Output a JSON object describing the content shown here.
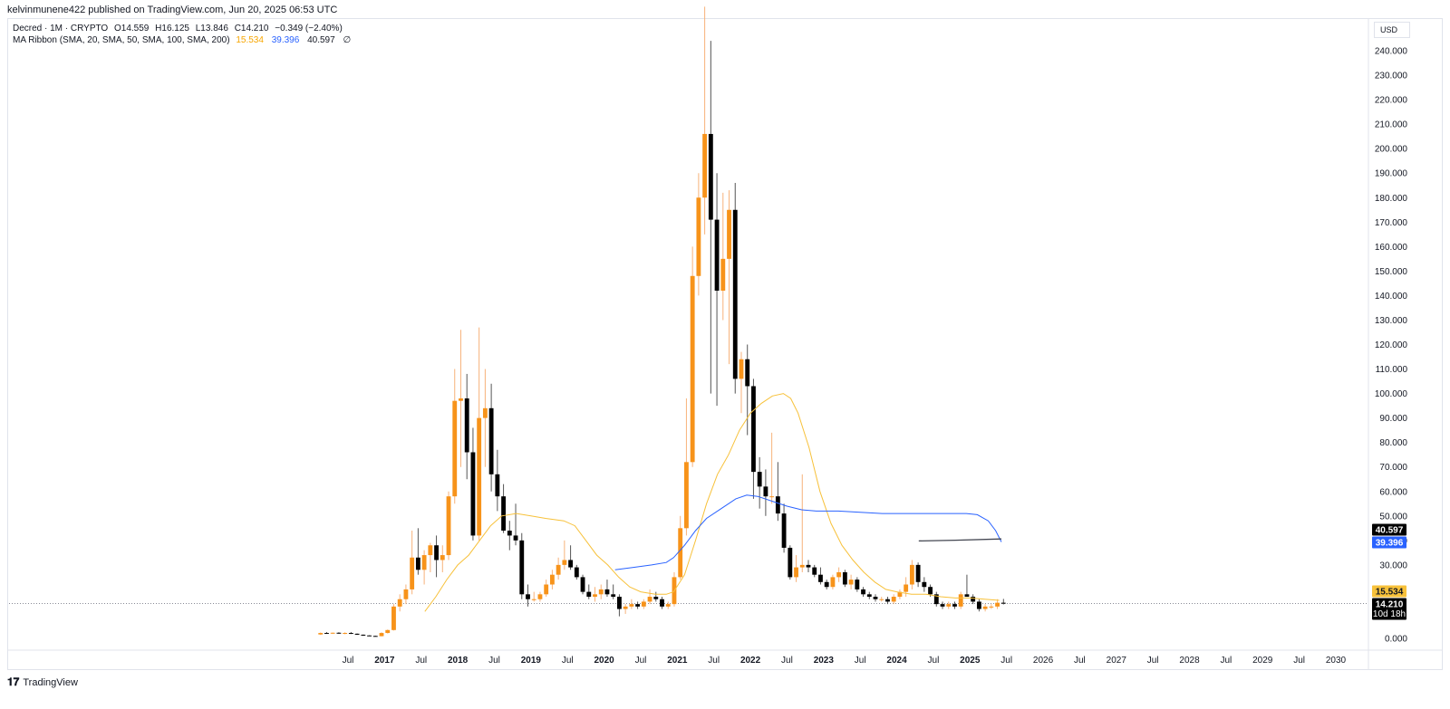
{
  "header": {
    "published": "kelvinmunene422 published on TradingView.com, Jun 20, 2025 06:53 UTC"
  },
  "legend": {
    "symbol": "Decred · 1M · CRYPTO",
    "open": "O14.559",
    "high": "H16.125",
    "low": "L13.846",
    "close": "C14.210",
    "change": "−0.349 (−2.40%)",
    "indicator": "MA Ribbon (SMA, 20, SMA, 50, SMA, 100, SMA, 200)",
    "ma1": "15.534",
    "ma2": "39.396",
    "ma3": "40.597",
    "ma4": "∅"
  },
  "currency": "USD",
  "footer": {
    "logo_mark": "𝟏𝟕",
    "logo_text": "TradingView"
  },
  "colors": {
    "up": "#f7931a",
    "down": "#000000",
    "ma20": "#f7c13a",
    "ma50": "#2962ff",
    "ma100": "#434651",
    "grid": "#e0e3eb"
  },
  "chart_data": {
    "type": "candlestick",
    "y_axis": {
      "ticks": [
        0,
        30,
        40,
        50,
        60,
        70,
        80,
        90,
        100,
        110,
        120,
        130,
        140,
        150,
        160,
        170,
        180,
        190,
        200,
        210,
        220,
        230,
        240
      ],
      "tick_labels": [
        "0.000",
        "30.000",
        "40.000",
        "50.000",
        "60.000",
        "70.000",
        "80.000",
        "90.000",
        "100.000",
        "110.000",
        "120.000",
        "130.000",
        "140.000",
        "150.000",
        "160.000",
        "170.000",
        "180.000",
        "190.000",
        "200.000",
        "210.000",
        "220.000",
        "230.000",
        "240.000"
      ],
      "range": [
        0,
        250
      ]
    },
    "x_axis": {
      "labels": [
        {
          "t": 2016.5,
          "label": "Jul",
          "bold": false
        },
        {
          "t": 2017.0,
          "label": "2017",
          "bold": true
        },
        {
          "t": 2017.5,
          "label": "Jul",
          "bold": false
        },
        {
          "t": 2018.0,
          "label": "2018",
          "bold": true
        },
        {
          "t": 2018.5,
          "label": "Jul",
          "bold": false
        },
        {
          "t": 2019.0,
          "label": "2019",
          "bold": true
        },
        {
          "t": 2019.5,
          "label": "Jul",
          "bold": false
        },
        {
          "t": 2020.0,
          "label": "2020",
          "bold": true
        },
        {
          "t": 2020.5,
          "label": "Jul",
          "bold": false
        },
        {
          "t": 2021.0,
          "label": "2021",
          "bold": true
        },
        {
          "t": 2021.5,
          "label": "Jul",
          "bold": false
        },
        {
          "t": 2022.0,
          "label": "2022",
          "bold": true
        },
        {
          "t": 2022.5,
          "label": "Jul",
          "bold": false
        },
        {
          "t": 2023.0,
          "label": "2023",
          "bold": true
        },
        {
          "t": 2023.5,
          "label": "Jul",
          "bold": false
        },
        {
          "t": 2024.0,
          "label": "2024",
          "bold": true
        },
        {
          "t": 2024.5,
          "label": "Jul",
          "bold": false
        },
        {
          "t": 2025.0,
          "label": "2025",
          "bold": true
        },
        {
          "t": 2025.5,
          "label": "Jul",
          "bold": false
        },
        {
          "t": 2026.0,
          "label": "2026",
          "bold": false
        },
        {
          "t": 2026.5,
          "label": "Jul",
          "bold": false
        },
        {
          "t": 2027.0,
          "label": "2027",
          "bold": false
        },
        {
          "t": 2027.5,
          "label": "Jul",
          "bold": false
        },
        {
          "t": 2028.0,
          "label": "2028",
          "bold": false
        },
        {
          "t": 2028.5,
          "label": "Jul",
          "bold": false
        },
        {
          "t": 2029.0,
          "label": "2029",
          "bold": false
        },
        {
          "t": 2029.5,
          "label": "Jul",
          "bold": false
        },
        {
          "t": 2030.0,
          "label": "2030",
          "bold": false
        }
      ],
      "range": [
        2016.05,
        2030.35
      ]
    },
    "price_badges": [
      {
        "label": "40.597",
        "value": 40.597,
        "color": "#000000"
      },
      {
        "label": "39.396",
        "value": 39.396,
        "color": "#2962ff"
      },
      {
        "label": "15.534",
        "value": 15.534,
        "color": "#f7c13a",
        "text_color": "#131722"
      },
      {
        "label": "14.210",
        "value": 14.21,
        "color": "#000000",
        "sub": "10d 18h"
      }
    ],
    "last_price": 14.21,
    "candles_note": "monthly OHLC, estimated from the chart",
    "candles": [
      [
        "2016-02",
        1.6,
        2.4,
        1.4,
        2.2
      ],
      [
        "2016-03",
        2.2,
        2.6,
        1.9,
        2.0
      ],
      [
        "2016-04",
        2.0,
        2.4,
        1.8,
        2.3
      ],
      [
        "2016-05",
        2.3,
        2.5,
        1.9,
        2.0
      ],
      [
        "2016-06",
        2.0,
        2.5,
        1.7,
        2.2
      ],
      [
        "2016-07",
        2.2,
        2.6,
        1.8,
        1.9
      ],
      [
        "2016-08",
        1.9,
        2.0,
        1.4,
        1.5
      ],
      [
        "2016-09",
        1.5,
        1.6,
        1.0,
        1.2
      ],
      [
        "2016-10",
        1.2,
        1.3,
        0.9,
        1.0
      ],
      [
        "2016-11",
        1.0,
        1.1,
        0.8,
        0.9
      ],
      [
        "2016-12",
        0.9,
        2.5,
        0.8,
        2.2
      ],
      [
        "2017-01",
        2.2,
        3.6,
        2.0,
        3.4
      ],
      [
        "2017-02",
        3.4,
        14,
        3.2,
        13
      ],
      [
        "2017-03",
        13,
        18,
        11,
        16
      ],
      [
        "2017-04",
        16,
        22,
        14,
        20
      ],
      [
        "2017-05",
        20,
        44,
        18,
        33
      ],
      [
        "2017-06",
        33,
        45,
        26,
        28
      ],
      [
        "2017-07",
        28,
        36,
        22,
        34
      ],
      [
        "2017-08",
        34,
        39,
        27,
        38
      ],
      [
        "2017-09",
        38,
        42,
        25,
        32
      ],
      [
        "2017-10",
        32,
        38,
        27,
        34
      ],
      [
        "2017-11",
        34,
        60,
        32,
        58
      ],
      [
        "2017-12",
        58,
        110,
        55,
        97
      ],
      [
        "2018-01",
        97,
        126,
        70,
        98
      ],
      [
        "2018-02",
        98,
        108,
        65,
        76
      ],
      [
        "2018-03",
        76,
        86,
        40,
        42
      ],
      [
        "2018-04",
        42,
        127,
        40,
        90
      ],
      [
        "2018-05",
        90,
        110,
        70,
        94
      ],
      [
        "2018-06",
        94,
        104,
        60,
        67
      ],
      [
        "2018-07",
        67,
        77,
        52,
        58
      ],
      [
        "2018-08",
        58,
        63,
        43,
        44
      ],
      [
        "2018-09",
        44,
        48,
        36,
        42
      ],
      [
        "2018-10",
        42,
        55,
        38,
        40
      ],
      [
        "2018-11",
        40,
        43,
        16,
        18
      ],
      [
        "2018-12",
        18,
        22,
        13,
        16
      ],
      [
        "2019-01",
        16,
        19,
        15,
        16
      ],
      [
        "2019-02",
        16,
        19,
        15,
        18
      ],
      [
        "2019-03",
        18,
        24,
        17,
        22
      ],
      [
        "2019-04",
        22,
        28,
        20,
        26
      ],
      [
        "2019-05",
        26,
        33,
        24,
        30
      ],
      [
        "2019-06",
        30,
        40,
        28,
        32
      ],
      [
        "2019-07",
        32,
        38,
        28,
        29
      ],
      [
        "2019-08",
        29,
        30,
        24,
        25
      ],
      [
        "2019-09",
        25,
        26,
        18,
        19
      ],
      [
        "2019-10",
        19,
        22,
        16,
        17
      ],
      [
        "2019-11",
        17,
        21,
        15,
        18
      ],
      [
        "2019-12",
        18,
        22,
        16,
        20
      ],
      [
        "2020-01",
        20,
        24,
        17,
        18
      ],
      [
        "2020-02",
        18,
        22,
        16,
        17
      ],
      [
        "2020-03",
        17,
        18,
        9,
        12
      ],
      [
        "2020-04",
        12,
        14,
        10,
        13
      ],
      [
        "2020-05",
        13,
        16,
        12,
        14
      ],
      [
        "2020-06",
        14,
        15,
        12,
        13
      ],
      [
        "2020-07",
        13,
        16,
        12,
        15
      ],
      [
        "2020-08",
        15,
        20,
        14,
        17
      ],
      [
        "2020-09",
        17,
        19,
        15,
        16
      ],
      [
        "2020-10",
        16,
        17,
        12,
        13
      ],
      [
        "2020-11",
        13,
        15,
        12,
        14
      ],
      [
        "2020-12",
        14,
        27,
        13,
        25
      ],
      [
        "2021-01",
        25,
        50,
        24,
        45
      ],
      [
        "2021-02",
        45,
        98,
        42,
        72
      ],
      [
        "2021-03",
        72,
        160,
        70,
        148
      ],
      [
        "2021-04",
        148,
        190,
        140,
        180
      ],
      [
        "2021-05",
        180,
        258,
        165,
        206
      ],
      [
        "2021-06",
        206,
        244,
        100,
        171
      ],
      [
        "2021-07",
        171,
        190,
        95,
        142
      ],
      [
        "2021-08",
        142,
        182,
        130,
        155
      ],
      [
        "2021-09",
        155,
        183,
        112,
        175
      ],
      [
        "2021-10",
        175,
        186,
        100,
        106
      ],
      [
        "2021-11",
        106,
        117,
        92,
        114
      ],
      [
        "2021-12",
        114,
        120,
        83,
        103
      ],
      [
        "2022-01",
        103,
        106,
        57,
        68
      ],
      [
        "2022-02",
        68,
        74,
        53,
        62
      ],
      [
        "2022-03",
        62,
        69,
        50,
        58
      ],
      [
        "2022-04",
        58,
        84,
        55,
        58
      ],
      [
        "2022-05",
        58,
        72,
        48,
        51
      ],
      [
        "2022-06",
        51,
        55,
        35,
        37
      ],
      [
        "2022-07",
        37,
        38,
        24,
        25
      ],
      [
        "2022-08",
        25,
        34,
        23,
        29
      ],
      [
        "2022-09",
        29,
        67,
        27,
        30
      ],
      [
        "2022-10",
        30,
        32,
        27,
        29
      ],
      [
        "2022-11",
        29,
        30,
        25,
        26
      ],
      [
        "2022-12",
        26,
        29,
        22,
        23
      ],
      [
        "2023-01",
        23,
        24,
        20,
        21
      ],
      [
        "2023-02",
        21,
        26,
        20,
        25
      ],
      [
        "2023-03",
        25,
        29,
        23,
        27
      ],
      [
        "2023-04",
        27,
        28,
        21,
        22
      ],
      [
        "2023-05",
        22,
        26,
        20,
        24
      ],
      [
        "2023-06",
        24,
        25,
        19,
        20
      ],
      [
        "2023-07",
        20,
        21,
        17,
        18
      ],
      [
        "2023-08",
        18,
        19,
        16,
        17
      ],
      [
        "2023-09",
        17,
        18,
        15,
        16
      ],
      [
        "2023-10",
        16,
        17,
        15,
        16
      ],
      [
        "2023-11",
        16,
        17,
        14,
        15
      ],
      [
        "2023-12",
        15,
        18,
        14,
        17
      ],
      [
        "2024-01",
        17,
        20,
        16,
        19
      ],
      [
        "2024-02",
        19,
        25,
        17,
        22
      ],
      [
        "2024-03",
        22,
        32,
        20,
        30
      ],
      [
        "2024-04",
        30,
        31,
        21,
        23
      ],
      [
        "2024-05",
        23,
        25,
        19,
        21
      ],
      [
        "2024-06",
        21,
        22,
        17,
        18
      ],
      [
        "2024-07",
        18,
        19,
        13,
        14
      ],
      [
        "2024-08",
        14,
        15,
        12,
        13
      ],
      [
        "2024-09",
        13,
        15,
        12,
        14
      ],
      [
        "2024-10",
        14,
        15,
        12,
        13
      ],
      [
        "2024-11",
        13,
        19,
        12,
        18
      ],
      [
        "2024-12",
        18,
        26,
        17,
        17
      ],
      [
        "2025-01",
        17,
        18,
        14,
        15
      ],
      [
        "2025-02",
        15,
        16,
        11,
        12
      ],
      [
        "2025-03",
        12,
        14,
        11,
        13
      ],
      [
        "2025-04",
        13,
        14,
        12,
        13
      ],
      [
        "2025-05",
        13,
        16,
        12,
        14.559
      ],
      [
        "2025-06",
        14.559,
        16.125,
        13.846,
        14.21
      ]
    ],
    "ma_lines": [
      {
        "name": "SMA 20",
        "color": "#f7c13a",
        "points": [
          [
            2017.55,
            11
          ],
          [
            2017.7,
            17
          ],
          [
            2017.85,
            24
          ],
          [
            2018.0,
            30
          ],
          [
            2018.15,
            34
          ],
          [
            2018.3,
            40
          ],
          [
            2018.45,
            46
          ],
          [
            2018.6,
            50
          ],
          [
            2018.8,
            51
          ],
          [
            2019.0,
            50
          ],
          [
            2019.2,
            49
          ],
          [
            2019.45,
            48
          ],
          [
            2019.6,
            46
          ],
          [
            2019.75,
            40
          ],
          [
            2019.9,
            34
          ],
          [
            2020.05,
            30
          ],
          [
            2020.2,
            25
          ],
          [
            2020.35,
            21
          ],
          [
            2020.5,
            19
          ],
          [
            2020.7,
            18
          ],
          [
            2020.85,
            18
          ],
          [
            2020.95,
            19
          ],
          [
            2021.1,
            26
          ],
          [
            2021.25,
            40
          ],
          [
            2021.4,
            55
          ],
          [
            2021.55,
            67
          ],
          [
            2021.7,
            75
          ],
          [
            2021.85,
            85
          ],
          [
            2022.0,
            92
          ],
          [
            2022.15,
            96
          ],
          [
            2022.3,
            99
          ],
          [
            2022.45,
            100
          ],
          [
            2022.55,
            98
          ],
          [
            2022.65,
            92
          ],
          [
            2022.8,
            78
          ],
          [
            2022.95,
            60
          ],
          [
            2023.1,
            47
          ],
          [
            2023.25,
            38
          ],
          [
            2023.4,
            32
          ],
          [
            2023.55,
            27
          ],
          [
            2023.7,
            23
          ],
          [
            2023.85,
            20
          ],
          [
            2024.0,
            19
          ],
          [
            2024.2,
            18
          ],
          [
            2024.4,
            18
          ],
          [
            2024.6,
            17
          ],
          [
            2024.8,
            16.5
          ],
          [
            2025.0,
            16.5
          ],
          [
            2025.2,
            16
          ],
          [
            2025.4,
            15.534
          ]
        ]
      },
      {
        "name": "SMA 50",
        "color": "#2962ff",
        "points": [
          [
            2020.15,
            28
          ],
          [
            2020.4,
            29
          ],
          [
            2020.65,
            30
          ],
          [
            2020.85,
            31
          ],
          [
            2020.95,
            33
          ],
          [
            2021.1,
            38
          ],
          [
            2021.25,
            44
          ],
          [
            2021.4,
            49
          ],
          [
            2021.6,
            53
          ],
          [
            2021.8,
            57
          ],
          [
            2021.95,
            58.5
          ],
          [
            2022.1,
            58
          ],
          [
            2022.3,
            56
          ],
          [
            2022.5,
            54
          ],
          [
            2022.7,
            52.5
          ],
          [
            2022.9,
            52
          ],
          [
            2023.2,
            52
          ],
          [
            2023.5,
            51.5
          ],
          [
            2023.8,
            51
          ],
          [
            2024.1,
            51
          ],
          [
            2024.4,
            51
          ],
          [
            2024.7,
            51
          ],
          [
            2024.95,
            51
          ],
          [
            2025.1,
            50.5
          ],
          [
            2025.25,
            48
          ],
          [
            2025.35,
            44
          ],
          [
            2025.43,
            39.396
          ]
        ]
      },
      {
        "name": "SMA 100",
        "color": "#434651",
        "points": [
          [
            2024.3,
            39.8
          ],
          [
            2024.8,
            40.1
          ],
          [
            2025.43,
            40.597
          ]
        ]
      }
    ]
  }
}
